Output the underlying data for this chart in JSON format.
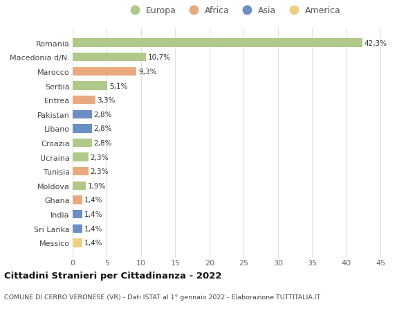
{
  "categories": [
    "Romania",
    "Macedonia d/N.",
    "Marocco",
    "Serbia",
    "Eritrea",
    "Pakistan",
    "Libano",
    "Croazia",
    "Ucraina",
    "Tunisia",
    "Moldova",
    "Ghana",
    "India",
    "Sri Lanka",
    "Messico"
  ],
  "values": [
    42.3,
    10.7,
    9.3,
    5.1,
    3.3,
    2.8,
    2.8,
    2.8,
    2.3,
    2.3,
    1.9,
    1.4,
    1.4,
    1.4,
    1.4
  ],
  "labels": [
    "42,3%",
    "10,7%",
    "9,3%",
    "5,1%",
    "3,3%",
    "2,8%",
    "2,8%",
    "2,8%",
    "2,3%",
    "2,3%",
    "1,9%",
    "1,4%",
    "1,4%",
    "1,4%",
    "1,4%"
  ],
  "colors": [
    "#aec989",
    "#aec989",
    "#e8a97e",
    "#aec989",
    "#e8a97e",
    "#6b8fc2",
    "#6b8fc2",
    "#aec989",
    "#aec989",
    "#e8a97e",
    "#aec989",
    "#e8a97e",
    "#6b8fc2",
    "#6b8fc2",
    "#f0d080"
  ],
  "legend_labels": [
    "Europa",
    "Africa",
    "Asia",
    "America"
  ],
  "legend_colors": [
    "#aec989",
    "#e8a97e",
    "#6b8fc2",
    "#f0d080"
  ],
  "title": "Cittadini Stranieri per Cittadinanza - 2022",
  "subtitle": "COMUNE DI CERRO VERONESE (VR) - Dati ISTAT al 1° gennaio 2022 - Elaborazione TUTTITALIA.IT",
  "xlim": [
    0,
    47
  ],
  "xticks": [
    0,
    5,
    10,
    15,
    20,
    25,
    30,
    35,
    40,
    45
  ],
  "background_color": "#ffffff",
  "grid_color": "#e0e0e0"
}
